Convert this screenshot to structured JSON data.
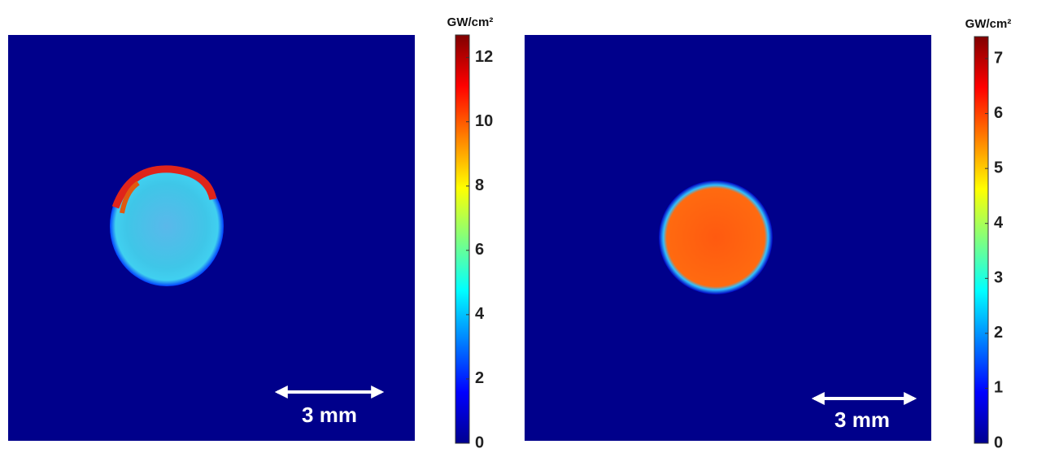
{
  "chart_data": [
    {
      "type": "image",
      "colorbar_label": "GW/cm²",
      "colormap": "jet",
      "clim": [
        0,
        12.7
      ],
      "cticks": [
        0,
        2,
        4,
        6,
        8,
        10,
        12
      ],
      "scale_bar": "3 mm"
    },
    {
      "type": "image",
      "colorbar_label": "GW/cm²",
      "colormap": "jet",
      "clim": [
        0,
        7.4
      ],
      "cticks": [
        0,
        1,
        2,
        3,
        4,
        5,
        6,
        7
      ],
      "scale_bar": "3 mm"
    }
  ]
}
